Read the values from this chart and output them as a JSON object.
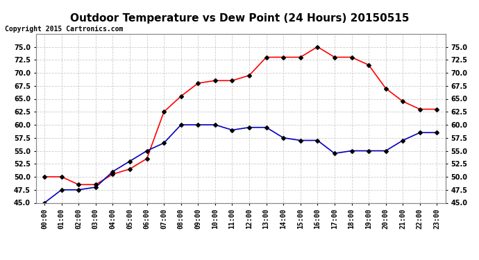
{
  "title": "Outdoor Temperature vs Dew Point (24 Hours) 20150515",
  "copyright": "Copyright 2015 Cartronics.com",
  "hours": [
    "00:00",
    "01:00",
    "02:00",
    "03:00",
    "04:00",
    "05:00",
    "06:00",
    "07:00",
    "08:00",
    "09:00",
    "10:00",
    "11:00",
    "12:00",
    "13:00",
    "14:00",
    "15:00",
    "16:00",
    "17:00",
    "18:00",
    "19:00",
    "20:00",
    "21:00",
    "22:00",
    "23:00"
  ],
  "temperature": [
    50.0,
    50.0,
    48.5,
    48.5,
    50.5,
    51.5,
    53.5,
    62.5,
    65.5,
    68.0,
    68.5,
    68.5,
    69.5,
    73.0,
    73.0,
    73.0,
    75.0,
    73.0,
    73.0,
    71.5,
    67.0,
    64.5,
    63.0,
    63.0
  ],
  "dew_point": [
    45.0,
    47.5,
    47.5,
    48.0,
    51.0,
    53.0,
    55.0,
    56.5,
    60.0,
    60.0,
    60.0,
    59.0,
    59.5,
    59.5,
    57.5,
    57.0,
    57.0,
    54.5,
    55.0,
    55.0,
    55.0,
    57.0,
    58.5,
    58.5
  ],
  "ylim": [
    45.0,
    77.5
  ],
  "yticks": [
    45.0,
    47.5,
    50.0,
    52.5,
    55.0,
    57.5,
    60.0,
    62.5,
    65.0,
    67.5,
    70.0,
    72.5,
    75.0
  ],
  "temp_color": "#ff0000",
  "dew_color": "#0000bb",
  "marker_color": "#000000",
  "marker_size": 3,
  "bg_color": "#ffffff",
  "grid_color": "#cccccc",
  "legend_temp_bg": "#cc0000",
  "legend_dew_bg": "#0000bb",
  "title_fontsize": 11,
  "tick_fontsize": 7,
  "copyright_fontsize": 7
}
